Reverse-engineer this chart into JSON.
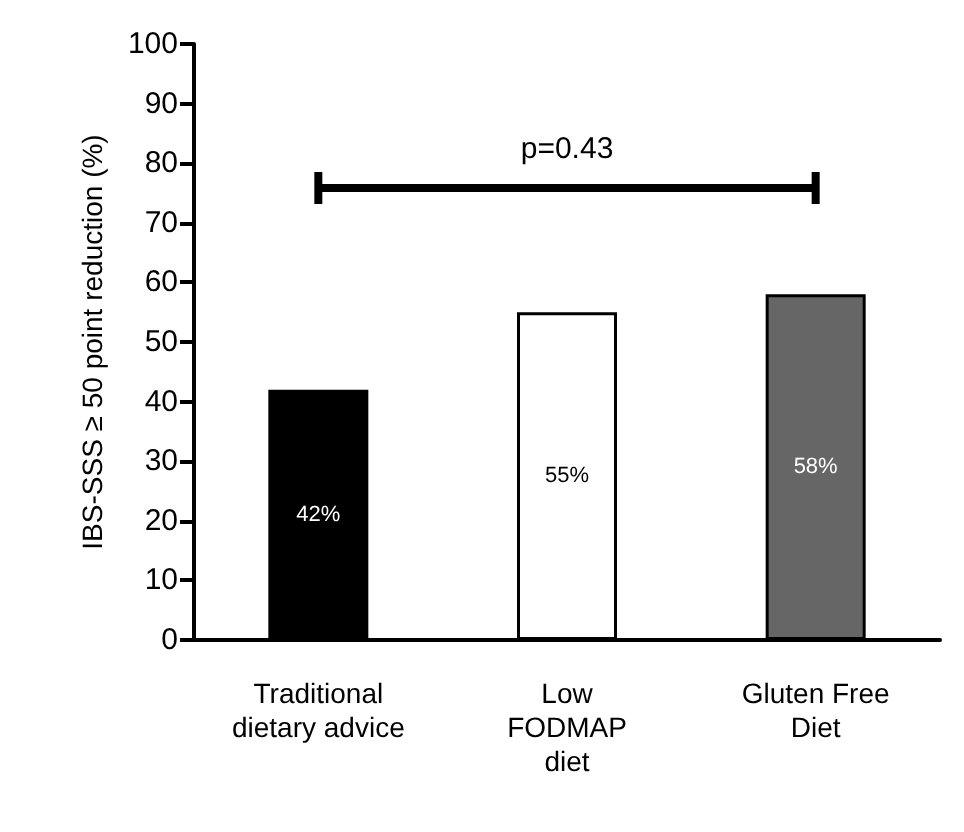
{
  "chart_data": {
    "type": "bar",
    "ylabel": "IBS-SSS ≥ 50 point reduction (%)",
    "categories": [
      "Traditional\ndietary advice",
      "Low\nFODMAP\ndiet",
      "Gluten Free\nDiet"
    ],
    "values": [
      42,
      55,
      58
    ],
    "colors": [
      "#000000",
      "#ffffff",
      "#666666"
    ],
    "value_labels": [
      "42%",
      "55%",
      "58%"
    ],
    "ylim": [
      0,
      100
    ],
    "yticks": [
      0,
      10,
      20,
      30,
      40,
      50,
      60,
      70,
      80,
      90,
      100
    ],
    "annotations": [
      "p=0.43"
    ],
    "grid": false
  }
}
